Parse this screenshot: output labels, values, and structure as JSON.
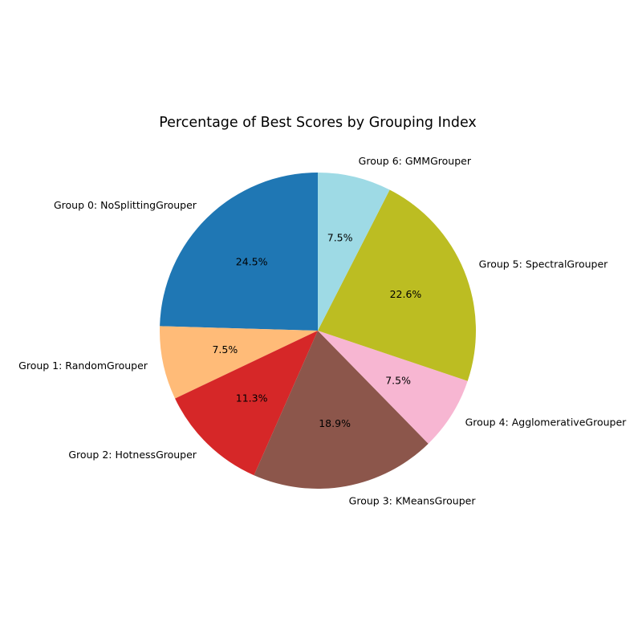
{
  "chart_data": {
    "type": "pie",
    "title": "Percentage of Best Scores by Grouping Index",
    "start_angle_deg": 90,
    "direction": "counterclockwise",
    "slices": [
      {
        "label": "Group 0: NoSplittingGrouper",
        "value": 24.5,
        "pct_text": "24.5%",
        "color": "#1f77b4"
      },
      {
        "label": "Group 1: RandomGrouper",
        "value": 7.5,
        "pct_text": "7.5%",
        "color": "#ffbb78"
      },
      {
        "label": "Group 2: HotnessGrouper",
        "value": 11.3,
        "pct_text": "11.3%",
        "color": "#d62728"
      },
      {
        "label": "Group 3: KMeansGrouper",
        "value": 18.9,
        "pct_text": "18.9%",
        "color": "#8c564b"
      },
      {
        "label": "Group 4: AgglomerativeGrouper",
        "value": 7.5,
        "pct_text": "7.5%",
        "color": "#f7b6d2"
      },
      {
        "label": "Group 5: SpectralGrouper",
        "value": 22.6,
        "pct_text": "22.6%",
        "color": "#bcbd22"
      },
      {
        "label": "Group 6: GMMGrouper",
        "value": 7.5,
        "pct_text": "7.5%",
        "color": "#9edae5"
      }
    ]
  }
}
